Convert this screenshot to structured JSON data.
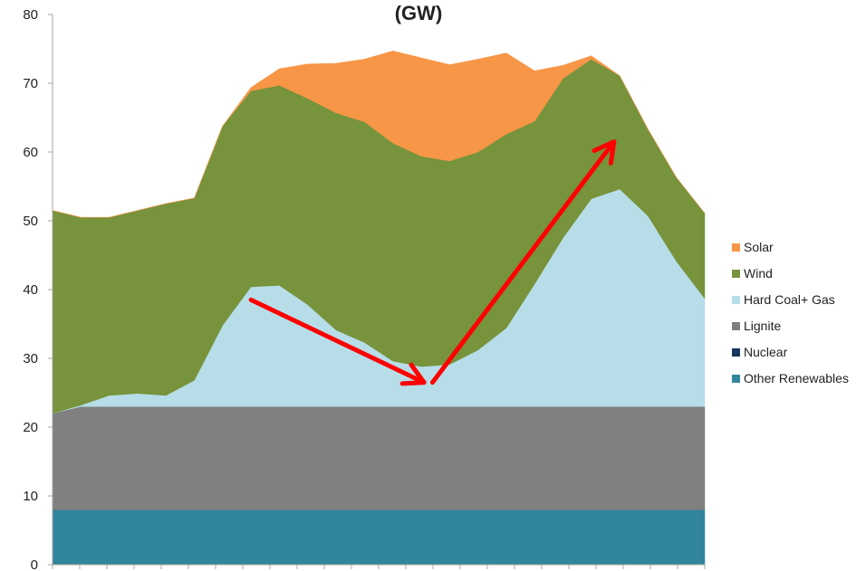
{
  "chart_data": {
    "type": "area",
    "stacked": true,
    "title": "(GW)",
    "xlabel": "",
    "ylabel": "",
    "ylim": [
      0,
      80
    ],
    "yticks": [
      0,
      10,
      20,
      30,
      40,
      50,
      60,
      70,
      80
    ],
    "x": [
      0,
      1,
      2,
      3,
      4,
      5,
      6,
      7,
      8,
      9,
      10,
      11,
      12,
      13,
      14,
      15,
      16,
      17,
      18,
      19,
      20,
      21,
      22,
      23
    ],
    "legend_position": "right",
    "grid": false,
    "series": [
      {
        "name": "Other Renewables",
        "color": "#31859C",
        "values": [
          8,
          8,
          8,
          8,
          8,
          8,
          8,
          8,
          8,
          8,
          8,
          8,
          8,
          8,
          8,
          8,
          8,
          8,
          8,
          8,
          8,
          8,
          8,
          8
        ]
      },
      {
        "name": "Nuclear",
        "color": "#17375E",
        "values": [
          0,
          0,
          0,
          0,
          0,
          0,
          0,
          0,
          0,
          0,
          0,
          0,
          0,
          0,
          0,
          0,
          0,
          0,
          0,
          0,
          0,
          0,
          0,
          0
        ]
      },
      {
        "name": "Lignite",
        "color": "#808080",
        "values": [
          14,
          15,
          15,
          15,
          15,
          15,
          15,
          15,
          15,
          15,
          15,
          15,
          15,
          15,
          15,
          15,
          15,
          15,
          15,
          15,
          15,
          15,
          15,
          15
        ]
      },
      {
        "name": "Hard Coal+ Gas",
        "color": "#B7DDE8",
        "values": [
          0,
          0.2,
          1.6,
          1.9,
          1.6,
          3.8,
          11.8,
          17.4,
          17.6,
          14.8,
          11.1,
          9.3,
          6.6,
          5.8,
          6.1,
          8.2,
          11.4,
          17.8,
          24.5,
          30.2,
          31.6,
          27.7,
          21.1,
          15.7
        ]
      },
      {
        "name": "Wind",
        "color": "#77933C",
        "values": [
          29.5,
          27.3,
          25.9,
          26.6,
          27.9,
          26.5,
          29,
          28.5,
          29.1,
          30,
          31.6,
          32.1,
          31.7,
          30.6,
          29.6,
          28.8,
          28.2,
          23.7,
          23.2,
          20.3,
          16.5,
          12.6,
          12.2,
          12.4
        ]
      },
      {
        "name": "Solar",
        "color": "#F79646",
        "values": [
          0,
          0,
          0,
          0,
          0,
          0,
          0,
          0.5,
          2.4,
          5,
          7.2,
          9.1,
          13.4,
          14.3,
          14,
          13.5,
          11.8,
          7.3,
          1.9,
          0.5,
          0,
          0,
          0,
          0
        ]
      }
    ],
    "annotations": [
      {
        "type": "arrow",
        "color": "#FF0000",
        "from": [
          7,
          38.5
        ],
        "to": [
          13.1,
          26.5
        ]
      },
      {
        "type": "arrow",
        "color": "#FF0000",
        "from": [
          13.4,
          26.5
        ],
        "to": [
          19.8,
          61.5
        ]
      }
    ]
  }
}
